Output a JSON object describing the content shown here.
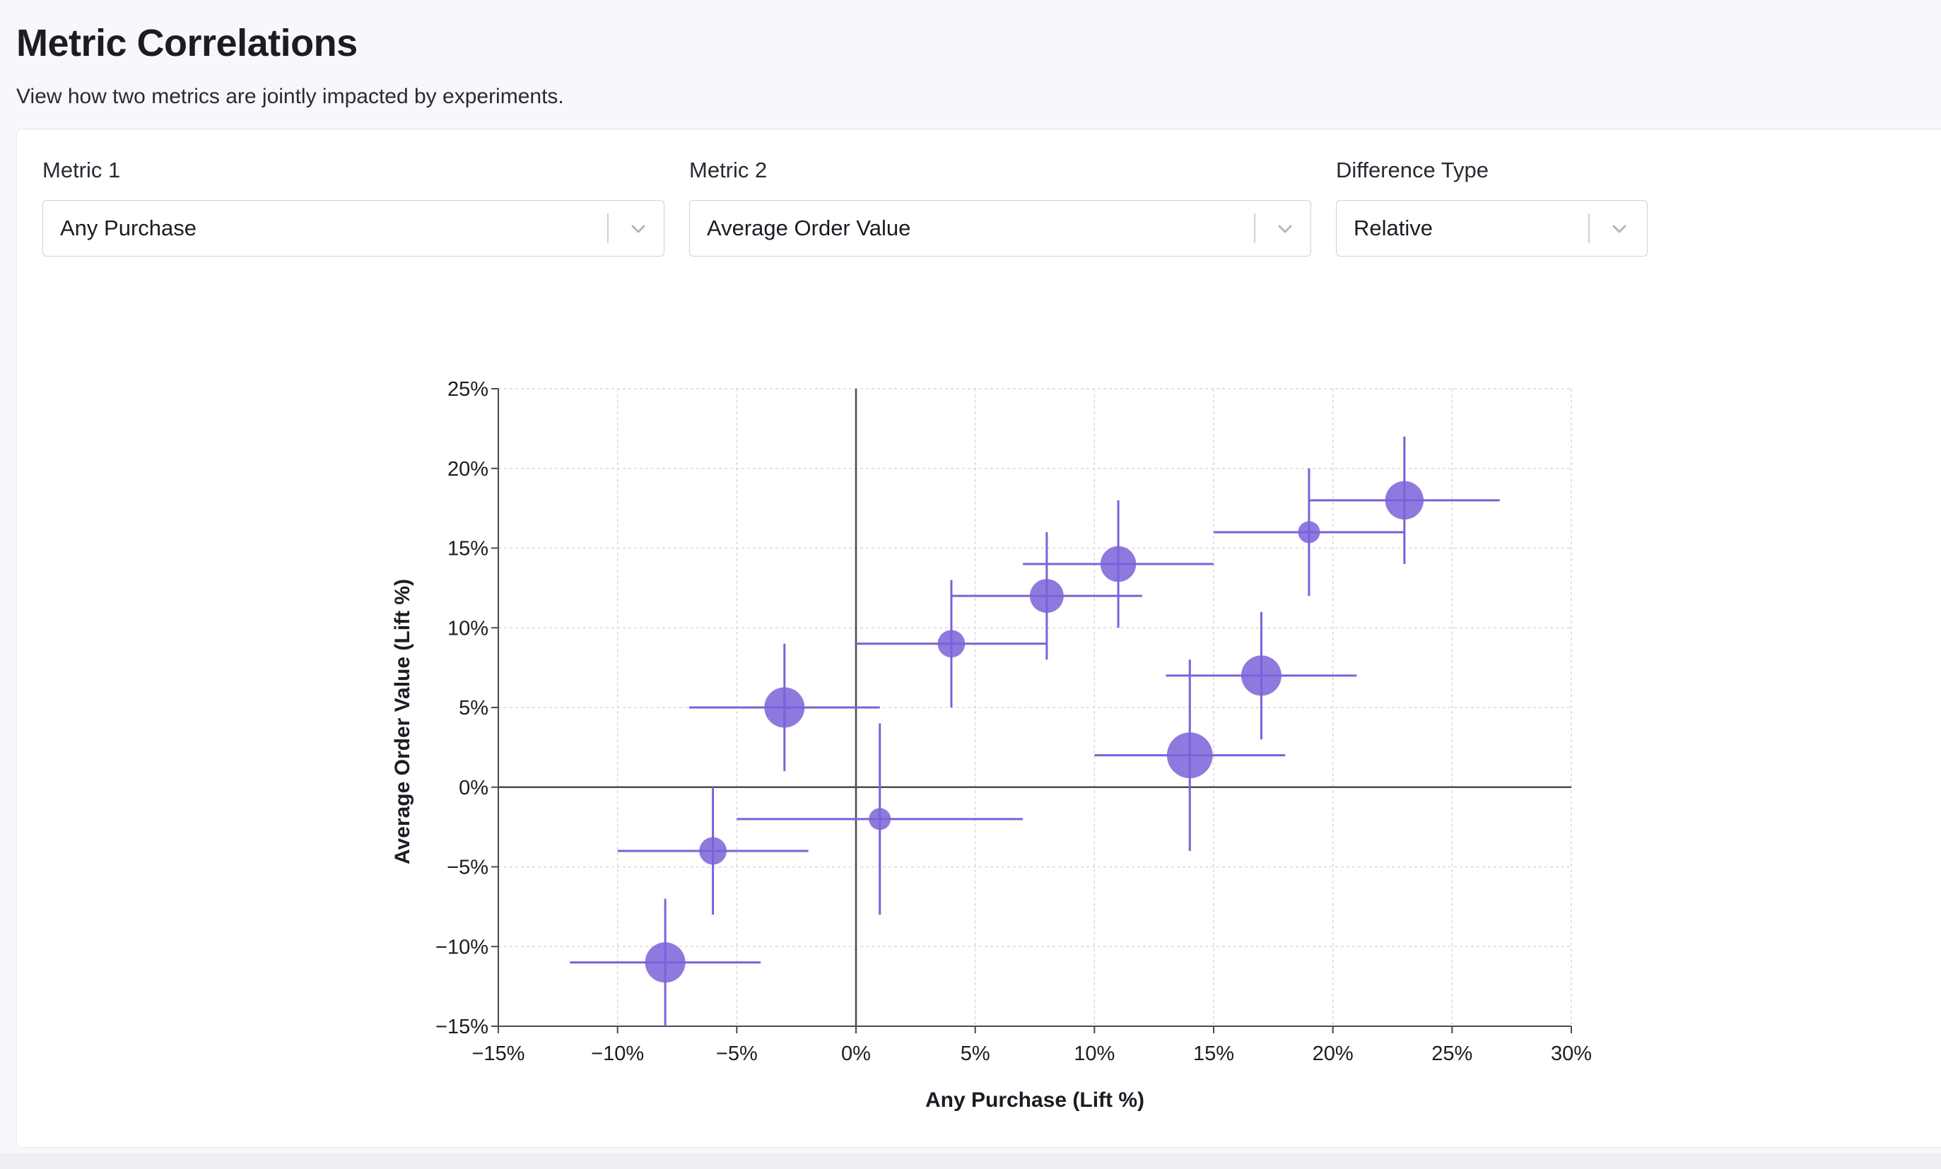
{
  "page": {
    "title": "Metric Correlations",
    "subtitle": "View how two metrics are jointly impacted by experiments."
  },
  "controls": {
    "metric1": {
      "label": "Metric 1",
      "value": "Any Purchase",
      "icon": "chevron-down-icon"
    },
    "metric2": {
      "label": "Metric 2",
      "value": "Average Order Value",
      "icon": "chevron-down-icon"
    },
    "difference_type": {
      "label": "Difference Type",
      "value": "Relative",
      "icon": "chevron-down-icon"
    }
  },
  "colors": {
    "accent": "#7b61d9",
    "axis": "#4a4a4f",
    "grid": "#d9d9e0"
  },
  "chart_data": {
    "type": "scatter",
    "title": "",
    "xlabel": "Any Purchase (Lift %)",
    "ylabel": "Average Order Value (Lift %)",
    "xlim": [
      -15,
      30
    ],
    "ylim": [
      -15,
      25
    ],
    "xticks": [
      -15,
      -10,
      -5,
      0,
      5,
      10,
      15,
      20,
      25,
      30
    ],
    "yticks": [
      -15,
      -10,
      -5,
      0,
      5,
      10,
      15,
      20,
      25
    ],
    "tick_format": "%",
    "grid": true,
    "zero_lines": true,
    "points": [
      {
        "x": -8,
        "y": -11,
        "x_ci": [
          -12,
          -4
        ],
        "y_ci": [
          -15,
          -7
        ],
        "size": 3
      },
      {
        "x": -6,
        "y": -4,
        "x_ci": [
          -10,
          -2
        ],
        "y_ci": [
          -8,
          0
        ],
        "size": 1.6
      },
      {
        "x": -3,
        "y": 5,
        "x_ci": [
          -7,
          1
        ],
        "y_ci": [
          1,
          9
        ],
        "size": 3
      },
      {
        "x": 1,
        "y": -2,
        "x_ci": [
          -5,
          7
        ],
        "y_ci": [
          -8,
          4
        ],
        "size": 1
      },
      {
        "x": 4,
        "y": 9,
        "x_ci": [
          0,
          8
        ],
        "y_ci": [
          5,
          13
        ],
        "size": 1.6
      },
      {
        "x": 8,
        "y": 12,
        "x_ci": [
          4,
          12
        ],
        "y_ci": [
          8,
          16
        ],
        "size": 2.3
      },
      {
        "x": 11,
        "y": 14,
        "x_ci": [
          7,
          15
        ],
        "y_ci": [
          10,
          18
        ],
        "size": 2.5
      },
      {
        "x": 14,
        "y": 2,
        "x_ci": [
          10,
          18
        ],
        "y_ci": [
          -4,
          8
        ],
        "size": 3.6
      },
      {
        "x": 17,
        "y": 7,
        "x_ci": [
          13,
          21
        ],
        "y_ci": [
          3,
          11
        ],
        "size": 3
      },
      {
        "x": 19,
        "y": 16,
        "x_ci": [
          15,
          23
        ],
        "y_ci": [
          12,
          20
        ],
        "size": 1
      },
      {
        "x": 23,
        "y": 18,
        "x_ci": [
          19,
          27
        ],
        "y_ci": [
          14,
          22
        ],
        "size": 2.8
      }
    ]
  }
}
